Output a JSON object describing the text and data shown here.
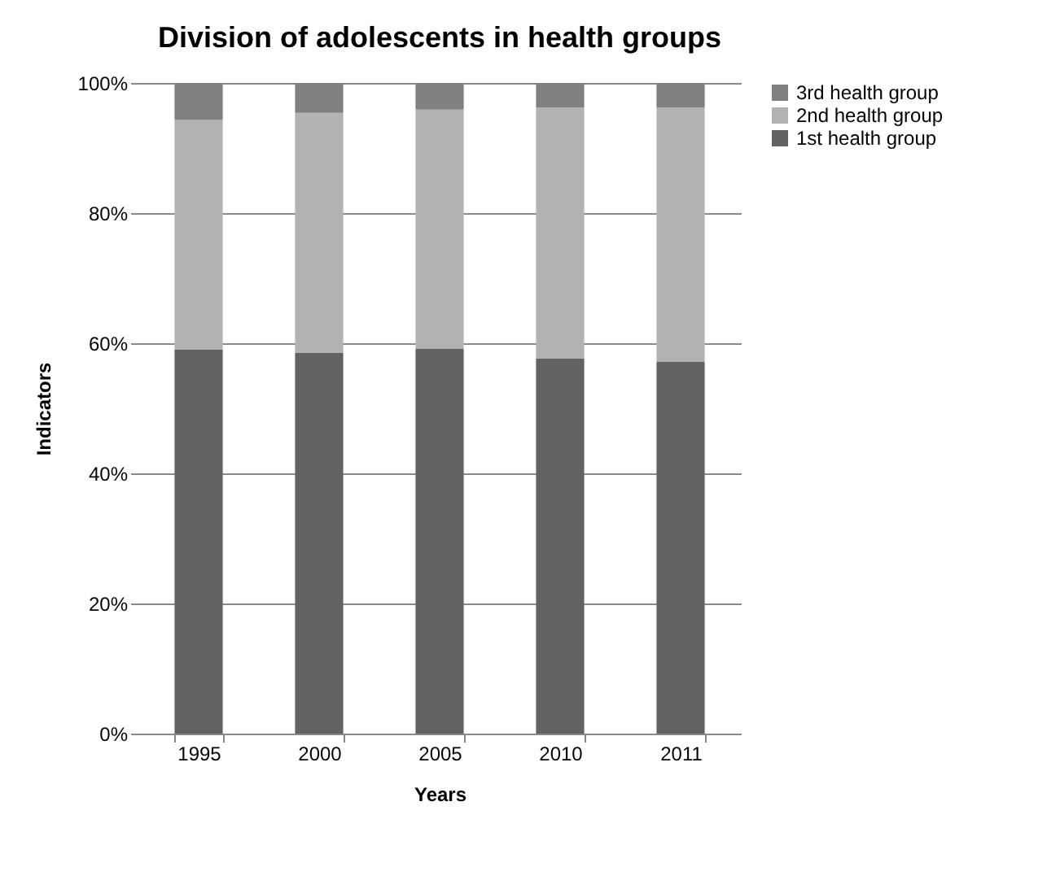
{
  "chart_data": {
    "type": "bar",
    "title": "Division of adolescents in health groups",
    "xlabel": "Years",
    "ylabel": "Indicators",
    "stacked": true,
    "categories": [
      "1995",
      "2000",
      "2005",
      "2010",
      "2011"
    ],
    "series": [
      {
        "name": "1st health group",
        "color": "#636363",
        "values": [
          59,
          58.5,
          59.2,
          57.7,
          57.2
        ]
      },
      {
        "name": "2nd health group",
        "color": "#b2b2b2",
        "values": [
          35.3,
          36.9,
          36.7,
          38.5,
          39.0
        ]
      },
      {
        "name": "3rd health group",
        "color": "#808080",
        "values": [
          5.7,
          4.6,
          4.1,
          3.8,
          3.8
        ]
      }
    ],
    "ylim": [
      0,
      100
    ],
    "yticks": [
      {
        "value": 0,
        "label": "0%"
      },
      {
        "value": 20,
        "label": "20%"
      },
      {
        "value": 40,
        "label": "40%"
      },
      {
        "value": 60,
        "label": "60%"
      },
      {
        "value": 80,
        "label": "80%"
      },
      {
        "value": 100,
        "label": "100%"
      }
    ],
    "grid": "y",
    "legend": "right"
  }
}
